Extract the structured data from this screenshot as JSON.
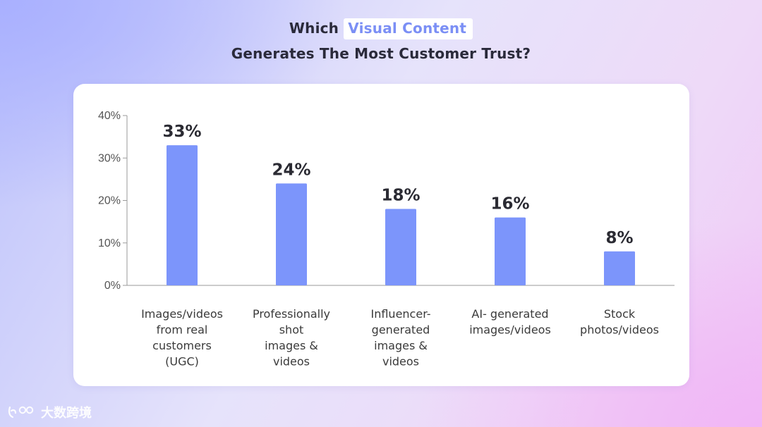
{
  "header": {
    "title_prefix": "Which",
    "title_highlight": "Visual Content",
    "title_line2": "Generates The Most Customer Trust?"
  },
  "chart_data": {
    "type": "bar",
    "categories": [
      [
        "Images/videos",
        "from real",
        "customers",
        "(UGC)"
      ],
      [
        "Professionally",
        "shot",
        "images &",
        "videos"
      ],
      [
        "Influencer-",
        "generated",
        "images &",
        "videos"
      ],
      [
        "AI- generated",
        "images/videos"
      ],
      [
        "Stock",
        "photos/videos"
      ]
    ],
    "values": [
      33,
      24,
      18,
      16,
      8
    ],
    "value_labels": [
      "33%",
      "24%",
      "18%",
      "16%",
      "8%"
    ],
    "ylim": [
      0,
      40
    ],
    "yticks": [
      0,
      10,
      20,
      30,
      40
    ],
    "ytick_labels": [
      "0%",
      "10%",
      "20%",
      "30%",
      "40%"
    ],
    "bar_color": "#7c95fb",
    "axis_color": "#9a9a9a",
    "grid": false,
    "title": "",
    "xlabel": "",
    "ylabel": ""
  },
  "watermark": {
    "text": "大数跨境"
  }
}
